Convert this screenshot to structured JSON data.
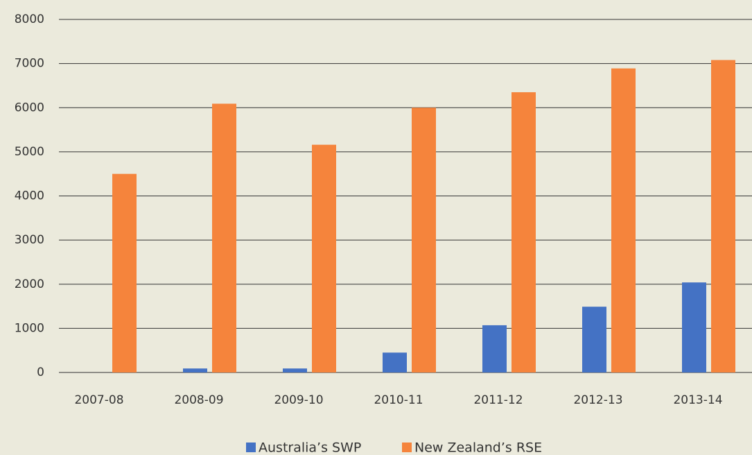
{
  "chart_data": {
    "type": "bar",
    "categories": [
      "2007-08",
      "2008-09",
      "2009-10",
      "2010-11",
      "2011-12",
      "2012-13",
      "2013-14"
    ],
    "series": [
      {
        "name": "Australia’s SWP",
        "color": "#4472c4",
        "values": [
          0,
          90,
          90,
          450,
          1070,
          1490,
          2040
        ]
      },
      {
        "name": "New Zealand’s RSE",
        "color": "#f5843c",
        "values": [
          4500,
          6090,
          5160,
          6000,
          6350,
          6890,
          7080
        ]
      }
    ],
    "ylim": [
      0,
      8000
    ],
    "yticks": [
      0,
      1000,
      2000,
      3000,
      4000,
      5000,
      6000,
      7000,
      8000
    ],
    "grid": true,
    "legend": "bottom"
  }
}
